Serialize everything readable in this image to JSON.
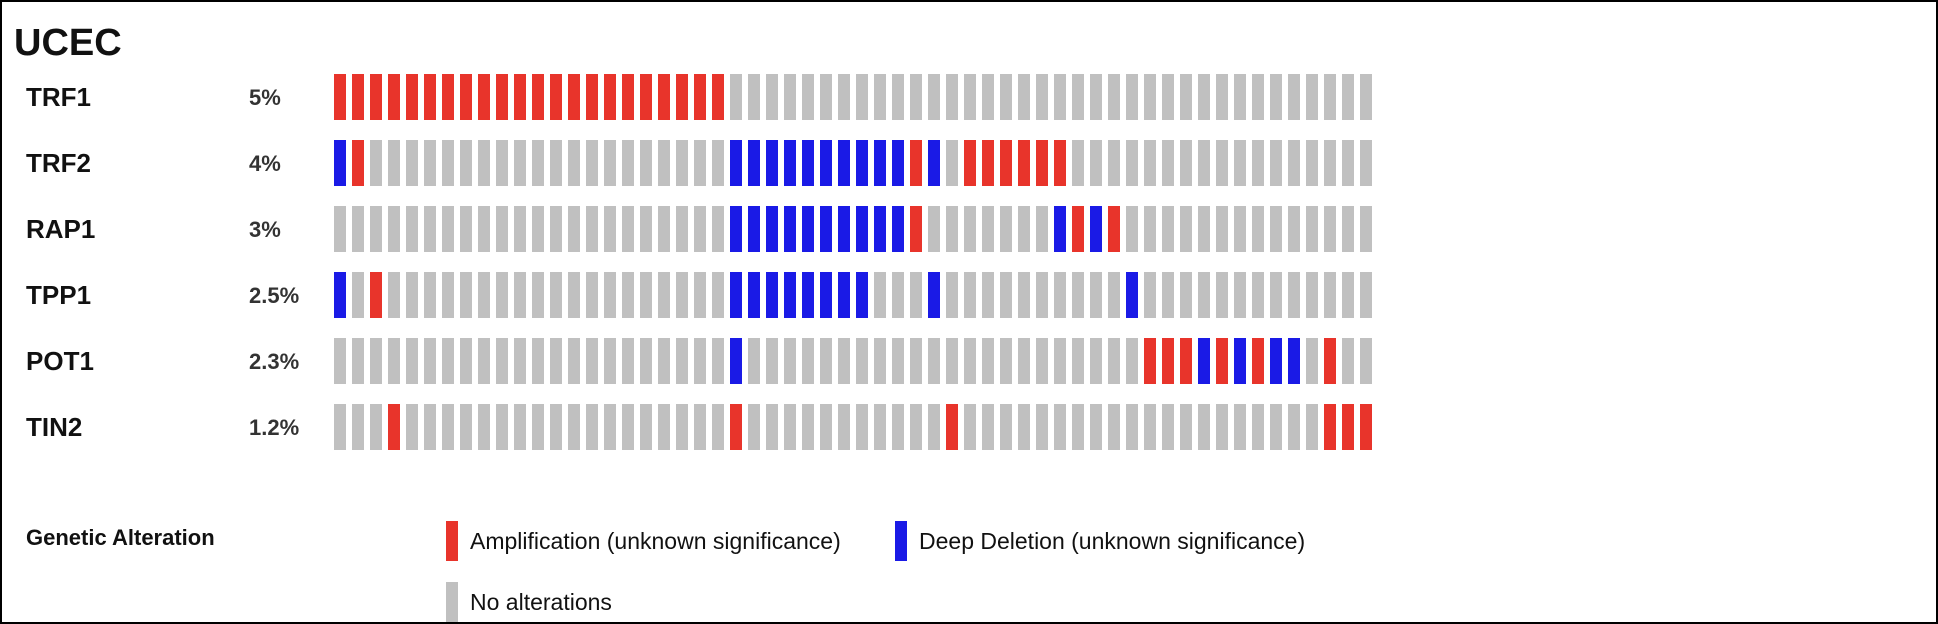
{
  "chart_data": {
    "type": "heatmap",
    "title": "UCEC",
    "n_samples": 58,
    "colors": {
      "amp": "#e8342b",
      "del": "#1a1ae6",
      "none": "#c0c0c0"
    },
    "rows": [
      {
        "gene": "TRF1",
        "pct": "5%",
        "amp": [
          0,
          1,
          2,
          3,
          4,
          5,
          6,
          7,
          8,
          9,
          10,
          11,
          12,
          13,
          14,
          15,
          16,
          17,
          18,
          19,
          20,
          21
        ],
        "del": []
      },
      {
        "gene": "TRF2",
        "pct": "4%",
        "amp": [
          1,
          32,
          35,
          36,
          37,
          38,
          39,
          40
        ],
        "del": [
          0,
          22,
          23,
          24,
          25,
          26,
          27,
          28,
          29,
          30,
          31,
          33
        ]
      },
      {
        "gene": "RAP1",
        "pct": "3%",
        "amp": [
          32,
          41,
          43
        ],
        "del": [
          22,
          23,
          24,
          25,
          26,
          27,
          28,
          29,
          30,
          31,
          40,
          42
        ]
      },
      {
        "gene": "TPP1",
        "pct": "2.5%",
        "amp": [
          2
        ],
        "del": [
          0,
          22,
          23,
          24,
          25,
          26,
          27,
          28,
          29,
          33,
          44
        ]
      },
      {
        "gene": "POT1",
        "pct": "2.3%",
        "amp": [
          45,
          46,
          47,
          49,
          51,
          55
        ],
        "del": [
          22,
          48,
          50,
          52,
          53
        ]
      },
      {
        "gene": "TIN2",
        "pct": "1.2%",
        "amp": [
          3,
          22,
          34,
          55,
          56,
          57
        ],
        "del": []
      }
    ],
    "legend": {
      "title": "Genetic Alteration",
      "items": [
        {
          "key": "amp",
          "label": "Amplification (unknown significance)"
        },
        {
          "key": "del",
          "label": "Deep Deletion (unknown significance)"
        },
        {
          "key": "none",
          "label": "No alterations"
        }
      ]
    }
  }
}
